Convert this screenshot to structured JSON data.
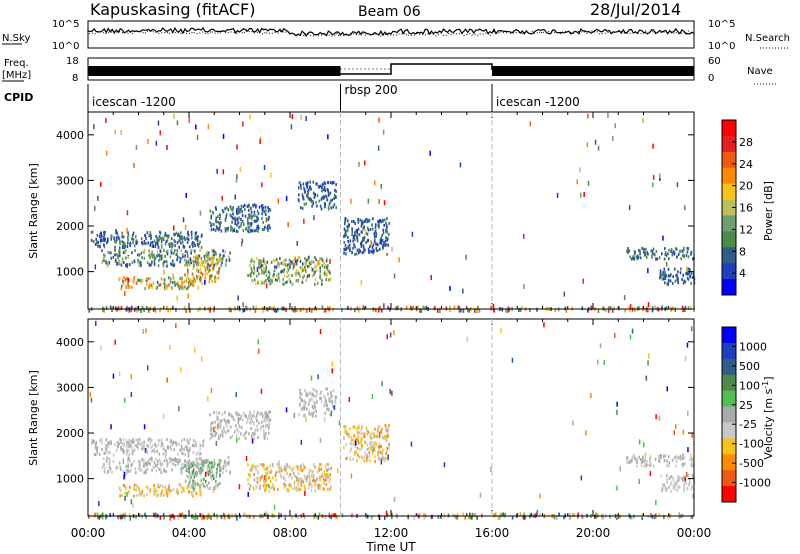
{
  "header": {
    "station": "Kapuskasing (fitACF)",
    "beam": "Beam 06",
    "date": "28/Jul/2014"
  },
  "sky_panel": {
    "left_label": "N.Sky",
    "right_label": "N.Search",
    "left_ticks": [
      "10^5",
      "10^0"
    ],
    "right_ticks": [
      "10^5",
      "10^0"
    ]
  },
  "freq_panel": {
    "left_label_top": "Freq.",
    "left_label_bottom": "[MHz]",
    "right_label": "Nave",
    "left_ticks": [
      "18",
      "8"
    ],
    "right_ticks": [
      "60",
      "0"
    ]
  },
  "cpid": {
    "label": "CPID",
    "segments": [
      {
        "name": "icescan -1200",
        "start_hour": 0,
        "end_hour": 10
      },
      {
        "name": "rbsp 200",
        "start_hour": 10,
        "end_hour": 16
      },
      {
        "name": "icescan -1200",
        "start_hour": 16,
        "end_hour": 24
      }
    ]
  },
  "x_axis": {
    "label": "Time UT",
    "ticks": [
      "00:00",
      "04:00",
      "08:00",
      "12:00",
      "16:00",
      "20:00",
      "00:00"
    ]
  },
  "colors": {
    "power": [
      "#0000ff",
      "#1f3fbf",
      "#2f5e8a",
      "#4f8a4a",
      "#6f9f6f",
      "#bcc05a",
      "#f7c31a",
      "#ff8a00",
      "#f05a10",
      "#e62020",
      "#ff0000"
    ],
    "velocity": [
      "#ff0000",
      "#f05a10",
      "#ff8a00",
      "#f7c31a",
      "#c8c8c8",
      "#aaaaaa",
      "#4fbf4f",
      "#4f8a4a",
      "#2f5e8a",
      "#1f3fbf",
      "#0000ff"
    ]
  },
  "chart_data": [
    {
      "type": "heatmap",
      "name": "power",
      "title": "",
      "xlabel": "",
      "ylabel": "Slant Range [km]",
      "xlim": [
        0,
        24
      ],
      "ylim": [
        180,
        4500
      ],
      "y_ticks": [
        "1000",
        "2000",
        "3000",
        "4000"
      ],
      "colorbar": {
        "label": "Power [dB]",
        "ticks": [
          "28",
          "24",
          "20",
          "16",
          "12",
          "8",
          "4"
        ],
        "range": [
          0,
          30
        ]
      },
      "regions": [
        {
          "x": [
            0.1,
            4.6
          ],
          "y": [
            1550,
            1900
          ],
          "value_range": [
            3,
            12
          ]
        },
        {
          "x": [
            0.5,
            5.6
          ],
          "y": [
            1150,
            1500
          ],
          "value_range": [
            4,
            18
          ]
        },
        {
          "x": [
            1.2,
            4.5
          ],
          "y": [
            650,
            900
          ],
          "value_range": [
            8,
            26
          ]
        },
        {
          "x": [
            3.8,
            5.2
          ],
          "y": [
            800,
            1400
          ],
          "value_range": [
            10,
            26
          ]
        },
        {
          "x": [
            4.8,
            7.2
          ],
          "y": [
            1900,
            2500
          ],
          "value_range": [
            4,
            12
          ]
        },
        {
          "x": [
            6.3,
            9.6
          ],
          "y": [
            750,
            1350
          ],
          "value_range": [
            6,
            20
          ]
        },
        {
          "x": [
            8.3,
            9.8
          ],
          "y": [
            2400,
            3000
          ],
          "value_range": [
            3,
            10
          ]
        },
        {
          "x": [
            10.1,
            11.9
          ],
          "y": [
            1400,
            2200
          ],
          "value_range": [
            3,
            10
          ]
        },
        {
          "x": [
            21.3,
            24.0
          ],
          "y": [
            1300,
            1550
          ],
          "value_range": [
            4,
            12
          ]
        },
        {
          "x": [
            22.6,
            24.0
          ],
          "y": [
            750,
            1100
          ],
          "value_range": [
            3,
            10
          ]
        },
        {
          "x": [
            0.0,
            24.0
          ],
          "y": [
            180,
            260
          ],
          "value_range": [
            4,
            30
          ]
        }
      ]
    },
    {
      "type": "heatmap",
      "name": "velocity",
      "title": "",
      "xlabel": "Time UT",
      "ylabel": "Slant Range [km]",
      "xlim": [
        0,
        24
      ],
      "ylim": [
        180,
        4500
      ],
      "y_ticks": [
        "1000",
        "2000",
        "3000",
        "4000"
      ],
      "colorbar": {
        "label": "Velocity [m s^-1]",
        "ticks": [
          "1000",
          "500",
          "100",
          "25",
          "-25",
          "-100",
          "-500",
          "-1000"
        ],
        "range": [
          -1000,
          1000
        ]
      },
      "regions": [
        {
          "x": [
            0.1,
            4.6
          ],
          "y": [
            1550,
            1900
          ],
          "value_range": [
            -25,
            25
          ]
        },
        {
          "x": [
            0.5,
            5.6
          ],
          "y": [
            1150,
            1500
          ],
          "value_range": [
            -100,
            100
          ]
        },
        {
          "x": [
            1.2,
            4.5
          ],
          "y": [
            650,
            900
          ],
          "value_range": [
            -500,
            25
          ]
        },
        {
          "x": [
            3.8,
            5.2
          ],
          "y": [
            800,
            1400
          ],
          "value_range": [
            -100,
            500
          ]
        },
        {
          "x": [
            4.8,
            7.2
          ],
          "y": [
            1900,
            2500
          ],
          "value_range": [
            -25,
            25
          ]
        },
        {
          "x": [
            6.3,
            9.6
          ],
          "y": [
            750,
            1350
          ],
          "value_range": [
            -500,
            100
          ]
        },
        {
          "x": [
            8.3,
            9.8
          ],
          "y": [
            2400,
            3000
          ],
          "value_range": [
            -25,
            25
          ]
        },
        {
          "x": [
            10.1,
            11.9
          ],
          "y": [
            1400,
            2200
          ],
          "value_range": [
            -500,
            25
          ]
        },
        {
          "x": [
            21.3,
            24.0
          ],
          "y": [
            1300,
            1550
          ],
          "value_range": [
            -25,
            25
          ]
        },
        {
          "x": [
            22.6,
            24.0
          ],
          "y": [
            750,
            1100
          ],
          "value_range": [
            -100,
            25
          ]
        },
        {
          "x": [
            0.0,
            24.0
          ],
          "y": [
            180,
            260
          ],
          "value_range": [
            -1000,
            1000
          ]
        }
      ]
    }
  ]
}
